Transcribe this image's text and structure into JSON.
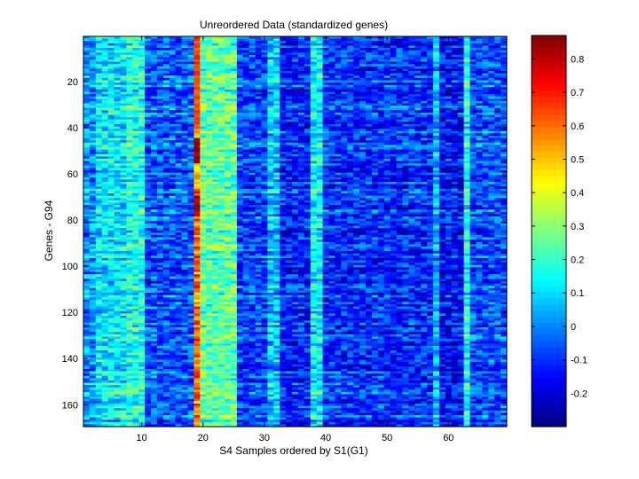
{
  "chart_data": {
    "type": "heatmap",
    "title": "Unreordered Data (standardized genes)",
    "xlabel": "S4 Samples ordered by S1(G1)",
    "ylabel": "Genes - G94",
    "n_rows": 169,
    "n_cols": 69,
    "xlim": [
      0.5,
      69.5
    ],
    "ylim": [
      0.5,
      169.5
    ],
    "x_ticks": [
      10,
      20,
      30,
      40,
      50,
      60
    ],
    "y_ticks": [
      20,
      40,
      60,
      80,
      100,
      120,
      140,
      160
    ],
    "colorbar": {
      "colormap": "jet",
      "range": [
        -0.3,
        0.87
      ],
      "ticks": [
        -0.2,
        -0.1,
        0,
        0.1,
        0.2,
        0.3,
        0.4,
        0.5,
        0.6,
        0.7,
        0.8
      ],
      "tick_labels": [
        "-0.2",
        "-0.1",
        "0",
        "0.1",
        "0.2",
        "0.3",
        "0.4",
        "0.5",
        "0.6",
        "0.7",
        "0.8"
      ]
    },
    "column_profiles": [
      {
        "columns": [
          1,
          2
        ],
        "mean_value": 0.02
      },
      {
        "columns": [
          3,
          4,
          5,
          6,
          7
        ],
        "mean_value": 0.12
      },
      {
        "columns": [
          8,
          9,
          10
        ],
        "mean_value": 0.18
      },
      {
        "columns": [
          11,
          12,
          13,
          14,
          15,
          16,
          17,
          18
        ],
        "mean_value": -0.05
      },
      {
        "columns": [
          19
        ],
        "mean_value": 0.6
      },
      {
        "columns": [
          20,
          21,
          22,
          23,
          24,
          25
        ],
        "mean_value": 0.25
      },
      {
        "columns": [
          26,
          27,
          28,
          29,
          30
        ],
        "mean_value": -0.08
      },
      {
        "columns": [
          31,
          32
        ],
        "mean_value": 0.08
      },
      {
        "columns": [
          33,
          34,
          35,
          36,
          37
        ],
        "mean_value": -0.12
      },
      {
        "columns": [
          38,
          39
        ],
        "mean_value": 0.14
      },
      {
        "columns": [
          40,
          41,
          42,
          43,
          44,
          45,
          46,
          47,
          48,
          49,
          50,
          51,
          52,
          53,
          54,
          55,
          56,
          57
        ],
        "mean_value": -0.1
      },
      {
        "columns": [
          58
        ],
        "mean_value": 0.06
      },
      {
        "columns": [
          59,
          60,
          61,
          62
        ],
        "mean_value": -0.14
      },
      {
        "columns": [
          63
        ],
        "mean_value": 0.18
      },
      {
        "columns": [
          64,
          65,
          66,
          67,
          68,
          69
        ],
        "mean_value": -0.06
      }
    ],
    "hotspots": [
      {
        "column": 19,
        "rows": [
          45,
          55
        ],
        "value": 0.85
      },
      {
        "column": 19,
        "rows": [
          70,
          78
        ],
        "value": 0.82
      },
      {
        "column": 19,
        "rows": [
          2,
          40
        ],
        "value": 0.65
      }
    ]
  }
}
